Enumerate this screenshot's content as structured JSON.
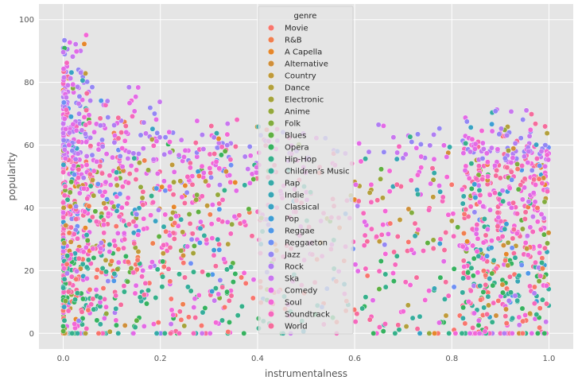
{
  "chart_data": {
    "type": "scatter",
    "title": "",
    "xlabel": "instrumentalness",
    "ylabel": "popularity",
    "xlim": [
      -0.05,
      1.05
    ],
    "ylim": [
      -5,
      105
    ],
    "xticks": [
      0.0,
      0.2,
      0.4,
      0.6,
      0.8,
      1.0
    ],
    "xtick_labels": [
      "0.0",
      "0.2",
      "0.4",
      "0.6",
      "0.8",
      "1.0"
    ],
    "yticks": [
      0,
      20,
      40,
      60,
      80,
      100
    ],
    "ytick_labels": [
      "0",
      "20",
      "40",
      "60",
      "80",
      "100"
    ],
    "grid": true,
    "background": "#e5e5e5",
    "legend": {
      "title": "genre",
      "placement": "upper-center",
      "entries": [
        {
          "name": "Movie",
          "color": "#f8766d"
        },
        {
          "name": "R&B",
          "color": "#f07f4f"
        },
        {
          "name": "A Capella",
          "color": "#e6872b"
        },
        {
          "name": "Alternative",
          "color": "#d08f3a"
        },
        {
          "name": "Country",
          "color": "#c09a3a"
        },
        {
          "name": "Dance",
          "color": "#b3a03c"
        },
        {
          "name": "Electronic",
          "color": "#a5a33a"
        },
        {
          "name": "Anime",
          "color": "#94a83c"
        },
        {
          "name": "Folk",
          "color": "#82ac3e"
        },
        {
          "name": "Blues",
          "color": "#5fb041"
        },
        {
          "name": "Opera",
          "color": "#36b25f"
        },
        {
          "name": "Hip-Hop",
          "color": "#35b08a"
        },
        {
          "name": "Children’s Music",
          "color": "#35ad9c"
        },
        {
          "name": "Rap",
          "color": "#36aaa8"
        },
        {
          "name": "Indie",
          "color": "#38a6b5"
        },
        {
          "name": "Classical",
          "color": "#3aa3c3"
        },
        {
          "name": "Pop",
          "color": "#3d9ed4"
        },
        {
          "name": "Reggae",
          "color": "#4f98e8"
        },
        {
          "name": "Reggaeton",
          "color": "#6f90f4"
        },
        {
          "name": "Jazz",
          "color": "#9487f4"
        },
        {
          "name": "Rock",
          "color": "#b07ef2"
        },
        {
          "name": "Ska",
          "color": "#c977ef"
        },
        {
          "name": "Comedy",
          "color": "#e36be6"
        },
        {
          "name": "Soul",
          "color": "#f367d6"
        },
        {
          "name": "Soundtrack",
          "color": "#f568bd"
        },
        {
          "name": "World",
          "color": "#f56c9c"
        }
      ]
    },
    "points_note": ""
  }
}
